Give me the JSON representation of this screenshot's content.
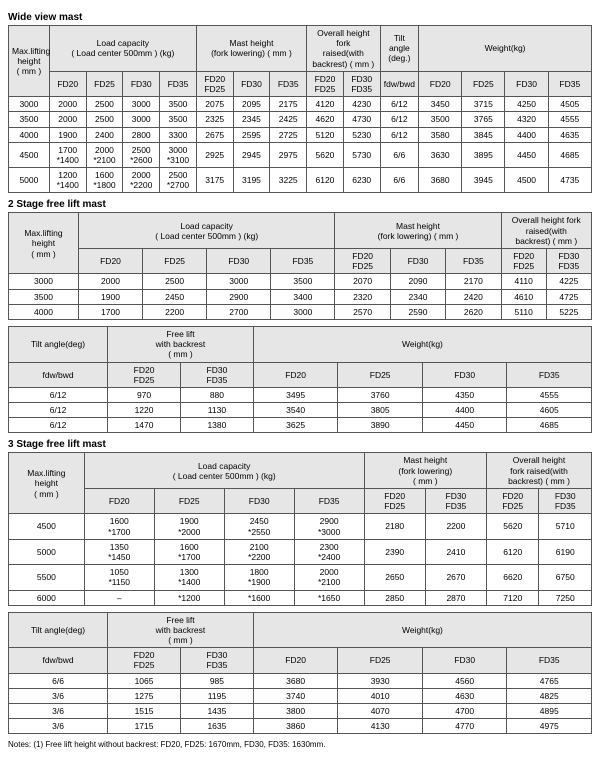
{
  "sections": {
    "wide": {
      "title": "Wide view mast",
      "headers": {
        "maxlift": "Max.lifting\nheight\n( mm )",
        "loadcap": "Load capacity\n( Load center 500mm ) (kg)",
        "mastheight": "Mast height\n(fork lowering) ( mm )",
        "overall": "Overall height fork\nraised(with\nbackrest) ( mm )",
        "tilt": "Tilt angle\n(deg.)",
        "weight": "Weight(kg)",
        "FD20": "FD20",
        "FD25": "FD25",
        "FD30": "FD30",
        "FD35": "FD35",
        "FD20FD25": "FD20\nFD25",
        "FD30FD35": "FD30\nFD35",
        "fdwbwd": "fdw/bwd"
      },
      "rows": [
        [
          "3000",
          "2000",
          "2500",
          "3000",
          "3500",
          "2075",
          "2095",
          "2175",
          "4120",
          "4230",
          "6/12",
          "3450",
          "3715",
          "4250",
          "4505"
        ],
        [
          "3500",
          "2000",
          "2500",
          "3000",
          "3500",
          "2325",
          "2345",
          "2425",
          "4620",
          "4730",
          "6/12",
          "3500",
          "3765",
          "4320",
          "4555"
        ],
        [
          "4000",
          "1900",
          "2400",
          "2800",
          "3300",
          "2675",
          "2595",
          "2725",
          "5120",
          "5230",
          "6/12",
          "3580",
          "3845",
          "4400",
          "4635"
        ],
        [
          "4500",
          "1700\n*1400",
          "2000\n*2100",
          "2500\n*2600",
          "3000\n*3100",
          "2925",
          "2945",
          "2975",
          "5620",
          "5730",
          "6/6",
          "3630",
          "3895",
          "4450",
          "4685"
        ],
        [
          "5000",
          "1200\n*1400",
          "1600\n*1800",
          "2000\n*2200",
          "2500\n*2700",
          "3175",
          "3195",
          "3225",
          "6120",
          "6230",
          "6/6",
          "3680",
          "3945",
          "4500",
          "4735"
        ]
      ]
    },
    "stage2a": {
      "title": "2 Stage free lift mast",
      "headers": {
        "maxlift": "Max.lifting\nheight\n( mm )",
        "loadcap": "Load capacity\n( Load center 500mm ) (kg)",
        "mastheight": "Mast height\n(fork lowering) ( mm )",
        "overall": "Overall height fork\nraised(with\nbackrest) ( mm )",
        "FD20": "FD20",
        "FD25": "FD25",
        "FD30": "FD30",
        "FD35": "FD35",
        "FD20FD25": "FD20\nFD25",
        "FD30FD35": "FD30\nFD35"
      },
      "rows": [
        [
          "3000",
          "2000",
          "2500",
          "3000",
          "3500",
          "2070",
          "2090",
          "2170",
          "4110",
          "4225"
        ],
        [
          "3500",
          "1900",
          "2450",
          "2900",
          "3400",
          "2320",
          "2340",
          "2420",
          "4610",
          "4725"
        ],
        [
          "4000",
          "1700",
          "2200",
          "2700",
          "3000",
          "2570",
          "2590",
          "2620",
          "5110",
          "5225"
        ]
      ]
    },
    "stage2b": {
      "headers": {
        "tilt": "Tilt angle(deg)",
        "freelift": "Free lift\nwith backrest\n( mm )",
        "weight": "Weight(kg)",
        "fdwbwd": "fdw/bwd",
        "FD20FD25": "FD20\nFD25",
        "FD30FD35": "FD30\nFD35",
        "FD20": "FD20",
        "FD25": "FD25",
        "FD30": "FD30",
        "FD35": "FD35"
      },
      "rows": [
        [
          "6/12",
          "970",
          "880",
          "3495",
          "3760",
          "4350",
          "4555"
        ],
        [
          "6/12",
          "1220",
          "1130",
          "3540",
          "3805",
          "4400",
          "4605"
        ],
        [
          "6/12",
          "1470",
          "1380",
          "3625",
          "3890",
          "4450",
          "4685"
        ]
      ]
    },
    "stage3a": {
      "title": "3 Stage free lift mast",
      "headers": {
        "maxlift": "Max.lifting\nheight\n( mm )",
        "loadcap": "Load capacity\n( Load center 500mm ) (kg)",
        "mastheight": "Mast height\n(fork lowering)\n( mm )",
        "overall": "Overall height\nfork raised(with\nbackrest) ( mm )",
        "FD20": "FD20",
        "FD25": "FD25",
        "FD30": "FD30",
        "FD35": "FD35",
        "FD20FD25": "FD20\nFD25",
        "FD30FD35": "FD30\nFD35"
      },
      "rows": [
        [
          "4500",
          "1600\n*1700",
          "1900\n*2000",
          "2450\n*2550",
          "2900\n*3000",
          "2180",
          "2200",
          "5620",
          "5710"
        ],
        [
          "5000",
          "1350\n*1450",
          "1600\n*1700",
          "2100\n*2200",
          "2300\n*2400",
          "2390",
          "2410",
          "6120",
          "6190"
        ],
        [
          "5500",
          "1050\n*1150",
          "1300\n*1400",
          "1800\n*1900",
          "2000\n*2100",
          "2650",
          "2670",
          "6620",
          "6750"
        ],
        [
          "6000",
          "–",
          "*1200",
          "*1600",
          "*1650",
          "2850",
          "2870",
          "7120",
          "7250"
        ]
      ]
    },
    "stage3b": {
      "headers": {
        "tilt": "Tilt angle(deg)",
        "freelift": "Free lift\nwith backrest\n( mm )",
        "weight": "Weight(kg)",
        "fdwbwd": "fdw/bwd",
        "FD20FD25": "FD20\nFD25",
        "FD30FD35": "FD30\nFD35",
        "FD20": "FD20",
        "FD25": "FD25",
        "FD30": "FD30",
        "FD35": "FD35"
      },
      "rows": [
        [
          "6/6",
          "1065",
          "985",
          "3680",
          "3930",
          "4560",
          "4765"
        ],
        [
          "3/6",
          "1275",
          "1195",
          "3740",
          "4010",
          "4630",
          "4825"
        ],
        [
          "3/6",
          "1515",
          "1435",
          "3800",
          "4070",
          "4700",
          "4895"
        ],
        [
          "3/6",
          "1715",
          "1635",
          "3860",
          "4130",
          "4770",
          "4975"
        ]
      ]
    }
  },
  "notes": "Notes: (1) Free lift height without backrest:  FD20, FD25: 1670mm,  FD30, FD35: 1630mm."
}
